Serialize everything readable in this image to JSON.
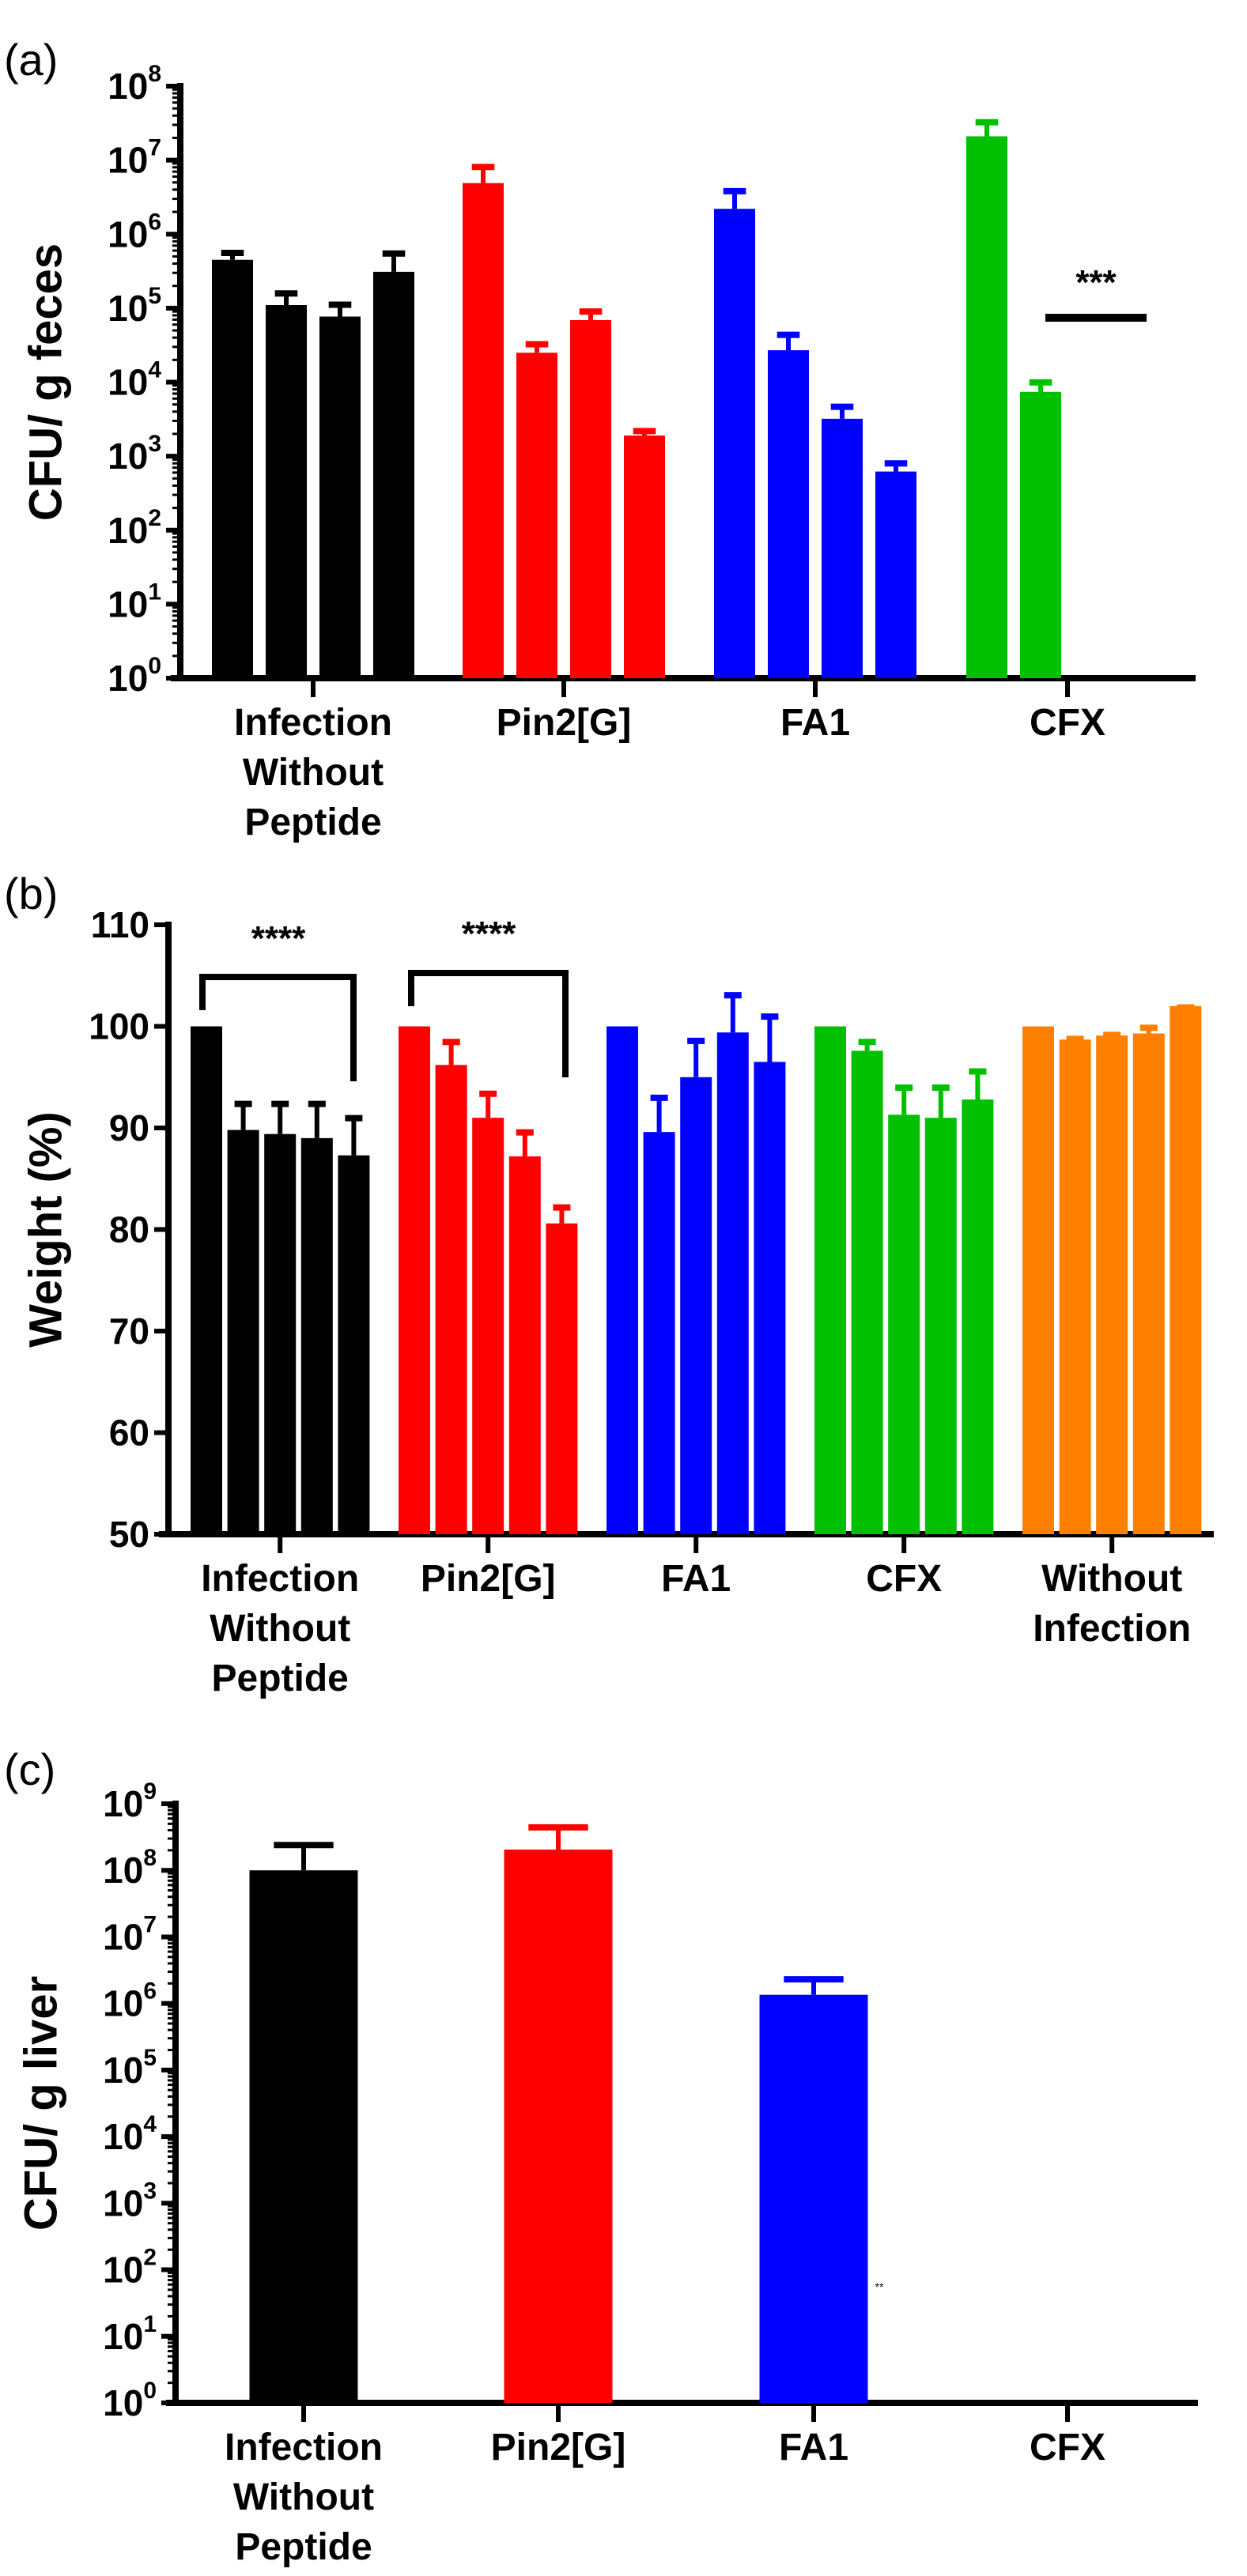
{
  "colors": {
    "black": "#000000",
    "red": "#ff0000",
    "blue": "#0000ff",
    "green": "#00c000",
    "orange": "#ff8000"
  },
  "chart_data": [
    {
      "panel_label": "(a)",
      "type": "bar",
      "scale": "log",
      "ylabel": "CFU/ g feces",
      "ylim": [
        1,
        100000000
      ],
      "ytick_base": "10",
      "ytick_exponents": [
        "0",
        "1",
        "2",
        "3",
        "4",
        "5",
        "6",
        "7",
        "8"
      ],
      "groups": [
        {
          "label": [
            "Infection",
            "Without",
            "Peptide"
          ],
          "color": "#000000",
          "values": [
            450000,
            110000,
            77000,
            310000
          ],
          "errors_upper": [
            600000,
            170000,
            120000,
            590000
          ]
        },
        {
          "label": [
            "Pin2[G]"
          ],
          "color": "#ff0000",
          "values": [
            4900000,
            25000,
            69000,
            1900
          ],
          "errors_upper": [
            8700000,
            35000,
            97000,
            2350
          ]
        },
        {
          "label": [
            "FA1"
          ],
          "color": "#0000ff",
          "values": [
            2200000,
            27000,
            3200,
            620
          ],
          "errors_upper": [
            4100000,
            47000,
            5000,
            860
          ]
        },
        {
          "label": [
            "CFX"
          ],
          "color": "#00c000",
          "values": [
            21000000,
            7400,
            0,
            0
          ],
          "errors_upper": [
            35000000,
            10700,
            0,
            0
          ]
        }
      ],
      "annotations": [
        {
          "text": "***"
        }
      ]
    },
    {
      "panel_label": "(b)",
      "type": "bar",
      "scale": "linear",
      "ylabel": "Weight (%)",
      "ylim": [
        50,
        110
      ],
      "yticks": [
        "50",
        "60",
        "70",
        "80",
        "90",
        "100",
        "110"
      ],
      "groups": [
        {
          "label": [
            "Infection",
            "Without",
            "Peptide"
          ],
          "color": "#000000",
          "values": [
            100,
            89.8,
            89.4,
            89.0,
            87.3
          ],
          "errors_upper": [
            100,
            92.6,
            92.6,
            92.6,
            91.2
          ]
        },
        {
          "label": [
            "Pin2[G]"
          ],
          "color": "#ff0000",
          "values": [
            100,
            96.2,
            91.0,
            87.2,
            80.6
          ],
          "errors_upper": [
            100,
            98.7,
            93.6,
            89.8,
            82.4
          ]
        },
        {
          "label": [
            "FA1"
          ],
          "color": "#0000ff",
          "values": [
            100,
            89.6,
            95.0,
            99.4,
            96.5
          ],
          "errors_upper": [
            100,
            93.2,
            98.8,
            103.3,
            101.2
          ]
        },
        {
          "label": [
            "CFX"
          ],
          "color": "#00c000",
          "values": [
            100,
            97.6,
            91.3,
            91.0,
            92.8
          ],
          "errors_upper": [
            100,
            98.7,
            94.2,
            94.2,
            95.8
          ]
        },
        {
          "label": [
            "Without",
            "Infection"
          ],
          "color": "#ff8000",
          "values": [
            100,
            98.7,
            99.1,
            99.3,
            102.0
          ],
          "errors_upper": [
            100,
            99.0,
            99.4,
            100.1,
            102.1
          ]
        }
      ],
      "annotations": [
        {
          "text": "****"
        },
        {
          "text": "****"
        }
      ]
    },
    {
      "panel_label": "(c)",
      "type": "bar",
      "scale": "log",
      "ylabel": "CFU/ g liver",
      "ylim": [
        1,
        1000000000
      ],
      "ytick_base": "10",
      "ytick_exponents": [
        "0",
        "1",
        "2",
        "3",
        "4",
        "5",
        "6",
        "7",
        "8",
        "9"
      ],
      "groups": [
        {
          "label": [
            "Infection",
            "Without",
            "Peptide"
          ],
          "color": "#000000",
          "values": [
            100000000
          ],
          "errors_upper": [
            260000000
          ]
        },
        {
          "label": [
            "Pin2[G]"
          ],
          "color": "#ff0000",
          "values": [
            205000000
          ],
          "errors_upper": [
            480000000
          ]
        },
        {
          "label": [
            "FA1"
          ],
          "color": "#0000ff",
          "values": [
            1350000
          ],
          "errors_upper": [
            2500000
          ]
        },
        {
          "label": [
            "CFX"
          ],
          "color": "#00c000",
          "values": [
            0
          ],
          "errors_upper": [
            0
          ]
        }
      ],
      "annotations": [
        {
          "text": "**"
        }
      ]
    }
  ]
}
